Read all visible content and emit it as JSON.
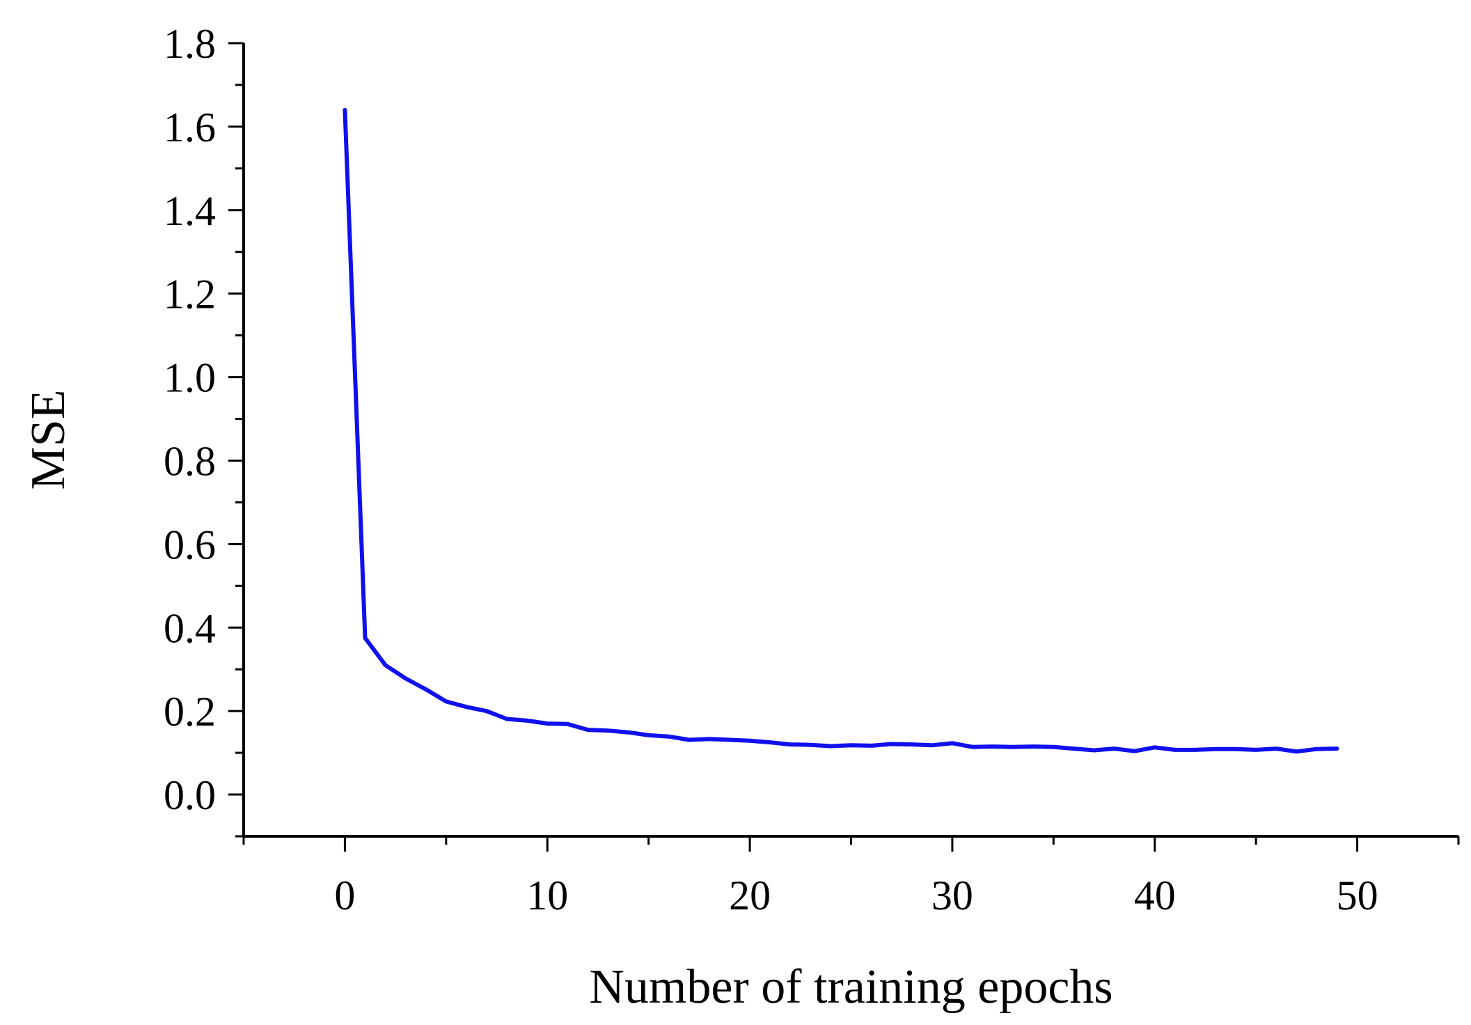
{
  "chart_data": {
    "type": "line",
    "title": "",
    "xlabel": "Number of training epochs",
    "ylabel": "MSE",
    "xlim": [
      -5,
      55
    ],
    "ylim": [
      -0.1,
      1.8
    ],
    "x_ticks": [
      0,
      10,
      20,
      30,
      40,
      50
    ],
    "x_tick_labels": [
      "0",
      "10",
      "20",
      "30",
      "40",
      "50"
    ],
    "x_minor_step": 5,
    "y_ticks": [
      0.0,
      0.2,
      0.4,
      0.6,
      0.8,
      1.0,
      1.2,
      1.4,
      1.6,
      1.8
    ],
    "y_tick_labels": [
      "0.0",
      "0.2",
      "0.4",
      "0.6",
      "0.8",
      "1.0",
      "1.2",
      "1.4",
      "1.6",
      "1.8"
    ],
    "y_minor_step": 0.1,
    "grid": false,
    "line_color": "#1010ee",
    "series": [
      {
        "x": [
          0,
          1,
          2,
          3,
          4,
          5,
          6,
          7,
          8,
          9,
          10,
          11,
          12,
          13,
          14,
          15,
          16,
          17,
          18,
          19,
          20,
          21,
          22,
          23,
          24,
          25,
          26,
          27,
          28,
          29,
          30,
          31,
          32,
          33,
          34,
          35,
          36,
          37,
          38,
          39,
          40,
          41,
          42,
          43,
          44,
          45,
          46,
          47,
          48,
          49
        ],
        "values": [
          1.64,
          0.375,
          0.31,
          0.278,
          0.252,
          0.223,
          0.21,
          0.2,
          0.181,
          0.177,
          0.17,
          0.169,
          0.155,
          0.153,
          0.149,
          0.142,
          0.139,
          0.131,
          0.133,
          0.131,
          0.129,
          0.125,
          0.12,
          0.119,
          0.116,
          0.118,
          0.117,
          0.121,
          0.12,
          0.118,
          0.123,
          0.114,
          0.115,
          0.114,
          0.115,
          0.114,
          0.11,
          0.106,
          0.11,
          0.104,
          0.113,
          0.107,
          0.107,
          0.109,
          0.109,
          0.107,
          0.11,
          0.103,
          0.109,
          0.11
        ]
      }
    ]
  }
}
